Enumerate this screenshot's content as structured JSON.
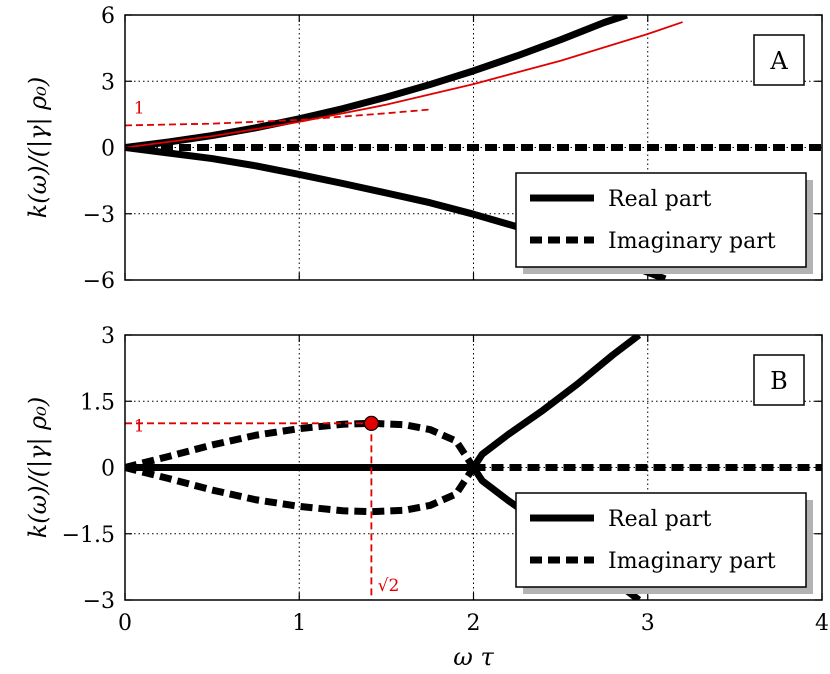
{
  "chart_data": [
    {
      "type": "line",
      "panel_label": "A",
      "ylabel": "k(ω)/(|γ| ρ₀)",
      "xlim": [
        0,
        4
      ],
      "ylim": [
        -6,
        6
      ],
      "xticks": [
        0,
        1,
        2,
        3,
        4
      ],
      "yticks": [
        6,
        3,
        0,
        -3,
        -6
      ],
      "ytick_labels": [
        "6",
        "3",
        "0",
        "−3",
        "−6"
      ],
      "grid": true,
      "legend": {
        "position": "bottom-right",
        "entries": [
          {
            "label": "Real part",
            "style": "solid"
          },
          {
            "label": "Imaginary part",
            "style": "dashed"
          }
        ]
      },
      "series": [
        {
          "style": "solid",
          "color": "#000000",
          "points": [
            [
              0,
              0
            ],
            [
              0.25,
              0.25
            ],
            [
              0.5,
              0.54
            ],
            [
              0.75,
              0.89
            ],
            [
              1,
              1.3
            ],
            [
              1.25,
              1.76
            ],
            [
              1.5,
              2.28
            ],
            [
              1.75,
              2.85
            ],
            [
              2,
              3.47
            ],
            [
              2.25,
              4.15
            ],
            [
              2.5,
              4.88
            ],
            [
              2.75,
              5.66
            ],
            [
              2.88,
              6.0
            ]
          ]
        },
        {
          "style": "solid",
          "color": "#000000",
          "points": [
            [
              0,
              0
            ],
            [
              0.25,
              -0.25
            ],
            [
              0.5,
              -0.5
            ],
            [
              0.75,
              -0.83
            ],
            [
              1,
              -1.22
            ],
            [
              1.25,
              -1.63
            ],
            [
              1.5,
              -2.06
            ],
            [
              1.75,
              -2.5
            ],
            [
              2,
              -3.02
            ],
            [
              2.25,
              -3.59
            ],
            [
              2.5,
              -4.22
            ],
            [
              2.75,
              -4.92
            ],
            [
              3,
              -5.65
            ],
            [
              3.1,
              -5.95
            ]
          ]
        },
        {
          "style": "dashed",
          "color": "#000000",
          "points": [
            [
              0,
              0
            ],
            [
              4,
              0
            ]
          ]
        },
        {
          "style": "solid",
          "color": "#e00000",
          "points": [
            [
              0,
              0
            ],
            [
              0.5,
              0.51
            ],
            [
              1,
              1.16
            ],
            [
              1.5,
              1.94
            ],
            [
              2,
              2.87
            ],
            [
              2.5,
              3.93
            ],
            [
              3,
              5.14
            ],
            [
              3.2,
              5.68
            ]
          ]
        },
        {
          "style": "dashed",
          "color": "#e00000",
          "points": [
            [
              0,
              1
            ],
            [
              0.5,
              1.08
            ],
            [
              1,
              1.25
            ],
            [
              1.5,
              1.55
            ],
            [
              1.75,
              1.72
            ]
          ]
        }
      ],
      "annotations": [
        {
          "text": "1",
          "x": 0.05,
          "y": 1.55,
          "color": "#e00000"
        }
      ]
    },
    {
      "type": "line",
      "panel_label": "B",
      "xlabel": "ω τ",
      "ylabel": "k(ω)/(|γ| ρ₀)",
      "xlim": [
        0,
        4
      ],
      "ylim": [
        -3,
        3
      ],
      "xticks": [
        0,
        1,
        2,
        3,
        4
      ],
      "xtick_labels": [
        "0",
        "1",
        "2",
        "3",
        "4"
      ],
      "yticks": [
        3,
        1.5,
        0,
        -1.5,
        -3
      ],
      "ytick_labels": [
        "3",
        "1.5",
        "0",
        "−1.5",
        "−3"
      ],
      "grid": true,
      "legend": {
        "position": "bottom-right",
        "entries": [
          {
            "label": "Real part",
            "style": "solid"
          },
          {
            "label": "Imaginary part",
            "style": "dashed"
          }
        ]
      },
      "series": [
        {
          "style": "solid",
          "color": "#000000",
          "points": [
            [
              0,
              0
            ],
            [
              2,
              0
            ]
          ]
        },
        {
          "style": "solid",
          "color": "#000000",
          "points": [
            [
              2,
              0
            ],
            [
              2.05,
              0.3
            ],
            [
              2.2,
              0.75
            ],
            [
              2.4,
              1.3
            ],
            [
              2.6,
              1.9
            ],
            [
              2.8,
              2.55
            ],
            [
              2.95,
              3.0
            ]
          ]
        },
        {
          "style": "solid",
          "color": "#000000",
          "points": [
            [
              2,
              0
            ],
            [
              2.05,
              -0.3
            ],
            [
              2.2,
              -0.75
            ],
            [
              2.4,
              -1.3
            ],
            [
              2.6,
              -1.9
            ],
            [
              2.8,
              -2.55
            ],
            [
              2.95,
              -3.0
            ]
          ]
        },
        {
          "style": "dashed",
          "color": "#000000",
          "points": [
            [
              0,
              0
            ],
            [
              0.25,
              0.25
            ],
            [
              0.5,
              0.51
            ],
            [
              0.75,
              0.73
            ],
            [
              1,
              0.88
            ],
            [
              1.25,
              0.98
            ],
            [
              1.414,
              1.0
            ],
            [
              1.6,
              0.97
            ],
            [
              1.75,
              0.86
            ],
            [
              1.9,
              0.6
            ],
            [
              2,
              0
            ]
          ]
        },
        {
          "style": "dashed",
          "color": "#000000",
          "points": [
            [
              0,
              0
            ],
            [
              0.25,
              -0.25
            ],
            [
              0.5,
              -0.51
            ],
            [
              0.75,
              -0.73
            ],
            [
              1,
              -0.88
            ],
            [
              1.25,
              -0.98
            ],
            [
              1.414,
              -1.0
            ],
            [
              1.6,
              -0.97
            ],
            [
              1.75,
              -0.86
            ],
            [
              1.9,
              -0.6
            ],
            [
              2,
              0
            ]
          ]
        },
        {
          "style": "dashed",
          "color": "#000000",
          "points": [
            [
              2,
              0
            ],
            [
              4,
              0
            ]
          ]
        }
      ],
      "reference_lines": [
        {
          "style": "dashed",
          "color": "#e00000",
          "points": [
            [
              0,
              1
            ],
            [
              1.414,
              1
            ]
          ]
        },
        {
          "style": "dashed",
          "color": "#e00000",
          "points": [
            [
              1.414,
              1
            ],
            [
              1.414,
              -3
            ]
          ]
        }
      ],
      "markers": [
        {
          "x": 1.414,
          "y": 1.0,
          "color": "#e00000"
        }
      ],
      "annotations": [
        {
          "text": "1",
          "x": 0.05,
          "y": 0.82,
          "color": "#e00000"
        },
        {
          "text": "√2",
          "x": 1.45,
          "y": -2.8,
          "color": "#e00000"
        }
      ]
    }
  ]
}
